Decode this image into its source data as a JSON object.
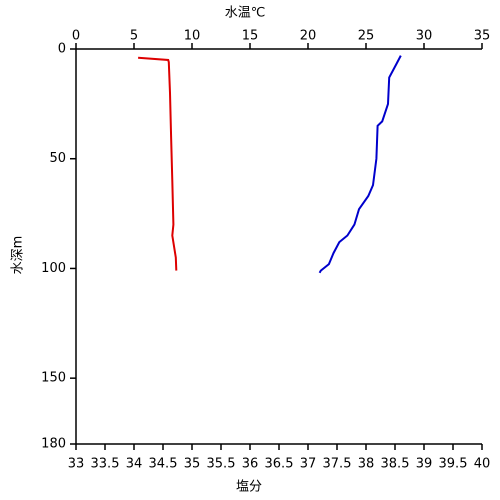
{
  "chart_data": {
    "type": "profile",
    "x2_label": "水温℃",
    "x2_label_color": "#1a1acc",
    "x_label": "塩分",
    "x_label_color": "#cc0000",
    "y_label": "水深m",
    "x2lim": [
      0,
      35
    ],
    "x2ticks": [
      0,
      5,
      10,
      15,
      20,
      25,
      30,
      35
    ],
    "xlim": [
      33,
      40
    ],
    "xticks": [
      33,
      33.5,
      34,
      34.5,
      35,
      35.5,
      36,
      36.5,
      37,
      37.5,
      38,
      38.5,
      39,
      39.5,
      40
    ],
    "ylim": [
      0,
      180
    ],
    "yticks": [
      0,
      50,
      100,
      150,
      180
    ],
    "y_inverted": true,
    "series": [
      {
        "axis": "x2",
        "color": "#0000cc",
        "values": [
          28.0,
          27.6,
          27.0,
          26.9,
          26.4,
          26.0,
          25.9,
          25.6,
          25.2,
          24.4,
          24.0,
          23.4,
          22.7,
          22.2,
          21.8,
          21.1,
          21.0
        ],
        "depths": [
          3,
          7,
          13,
          25,
          33,
          35,
          50,
          62,
          67,
          73,
          80,
          85,
          88,
          93,
          98,
          101,
          102
        ]
      },
      {
        "axis": "x",
        "color": "#dd0000",
        "values": [
          34.07,
          34.59,
          34.6,
          34.62,
          34.64,
          34.66,
          34.68,
          34.66,
          34.72,
          34.73
        ],
        "depths": [
          4,
          5,
          6,
          20,
          40,
          60,
          80,
          85,
          95,
          101
        ]
      }
    ]
  }
}
